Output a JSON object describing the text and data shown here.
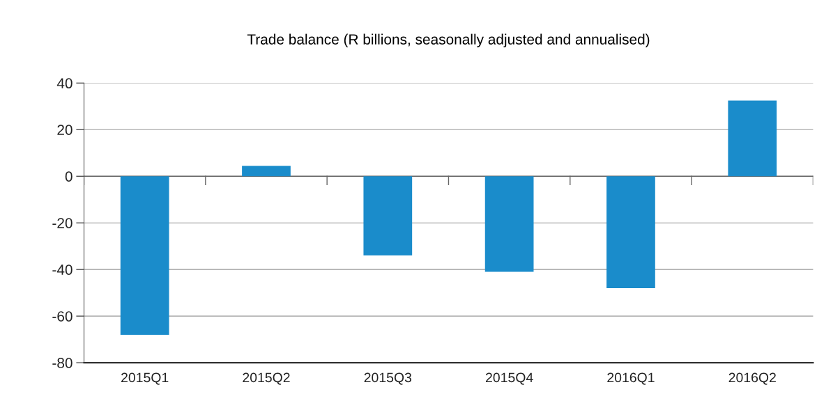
{
  "chart_data": {
    "type": "bar",
    "title": "Trade balance (R billions, seasonally adjusted and annualised)",
    "categories": [
      "2015Q1",
      "2015Q2",
      "2015Q3",
      "2015Q4",
      "2016Q1",
      "2016Q2"
    ],
    "values": [
      -68,
      4.5,
      -34,
      -41,
      -48,
      32.5
    ],
    "color": "#1a8ccb",
    "ylim": [
      -80,
      40
    ],
    "yticks": [
      -80,
      -60,
      -40,
      -20,
      0,
      20,
      40
    ],
    "grid": "y"
  }
}
